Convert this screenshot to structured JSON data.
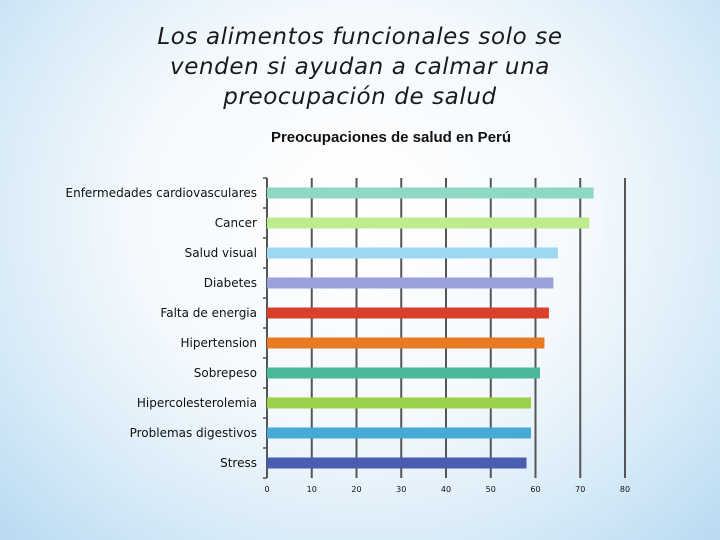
{
  "slide": {
    "title_lines": [
      "Los alimentos funcionales solo se",
      "venden si ayudan a calmar una",
      "preocupación de salud"
    ]
  },
  "chart_data": {
    "type": "bar",
    "orientation": "horizontal",
    "title": "Preocupaciones de salud en Perú",
    "categories": [
      "Enfermedades cardiovasculares",
      "Cancer",
      "Salud visual",
      "Diabetes",
      "Falta de energia",
      "Hipertension",
      "Sobrepeso",
      "Hipercolesterolemia",
      "Problemas digestivos",
      "Stress"
    ],
    "values": [
      73,
      72,
      65,
      64,
      63,
      62,
      61,
      59,
      59,
      58
    ],
    "colors": [
      "#8fd9c4",
      "#bdeb8e",
      "#9dd7f2",
      "#9aa0d8",
      "#d8402c",
      "#e97a24",
      "#4ab89b",
      "#9bd14a",
      "#47a9d6",
      "#4a5db0"
    ],
    "xlim": [
      0,
      80
    ],
    "xticks": [
      0,
      10,
      20,
      30,
      40,
      50,
      60,
      70,
      80
    ],
    "grid": true,
    "legend": "none"
  }
}
